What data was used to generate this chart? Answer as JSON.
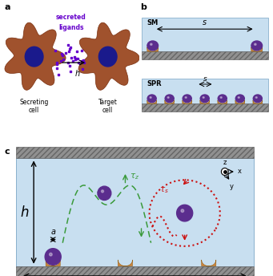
{
  "fig_width": 3.41,
  "fig_height": 3.44,
  "dpi": 100,
  "panel_a_label": "a",
  "panel_b_label": "b",
  "panel_c_label": "c",
  "cell_color": "#A0522D",
  "nucleus_color": "#1a1a8c",
  "ligand_color": "#6600CC",
  "h_label": "h",
  "s_label": "S",
  "a_label": "a",
  "secreting_label": "Secreting\ncell",
  "target_label": "Target\ncell",
  "sm_label": "SM",
  "spr_label": "SPR",
  "bg_blue": "#c8dff0",
  "wall_gray": "#909090",
  "wall_dark": "#666666",
  "receptor_color": "#CD853F",
  "sphere_color": "#5B2D8E",
  "green_color": "#3a9a3a",
  "red_color": "#cc1111"
}
